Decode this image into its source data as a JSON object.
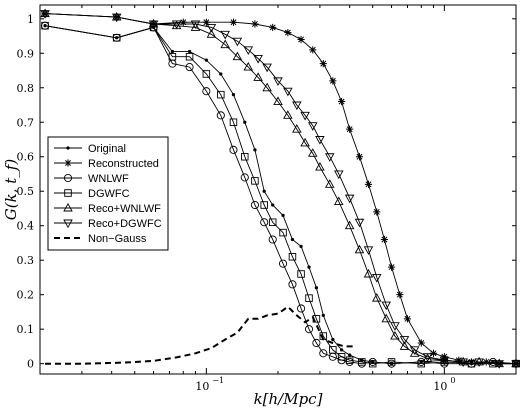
{
  "chart_data": {
    "type": "line",
    "xscale": "log",
    "xlim": [
      0.02,
      2.0
    ],
    "ylim": [
      -0.03,
      1.04
    ],
    "xlabel": "k[h/Mpc]",
    "ylabel": "G(k, t_f)",
    "xticks": [
      {
        "value": 0.1,
        "label": "10",
        "sup": "−1"
      },
      {
        "value": 1.0,
        "label": "10",
        "sup": "0"
      }
    ],
    "yticks": [
      0,
      0.1,
      0.2,
      0.3,
      0.4,
      0.5,
      0.6,
      0.7,
      0.8,
      0.9,
      1
    ],
    "ytick_labels": [
      "0",
      "0.1",
      "0.2",
      "0.3",
      "0.4",
      "0.5",
      "0.6",
      "0.7",
      "0.8",
      "0.9",
      "1"
    ],
    "legend_position": "center-left",
    "series": [
      {
        "name": "Original",
        "marker": "dot",
        "dashed": false,
        "x": [
          0.021,
          0.042,
          0.06,
          0.072,
          0.085,
          0.1,
          0.115,
          0.13,
          0.145,
          0.16,
          0.175,
          0.19,
          0.21,
          0.23,
          0.25,
          0.27,
          0.29,
          0.31,
          0.34,
          0.37,
          0.4,
          0.45,
          0.5,
          0.6,
          0.8,
          1.0,
          1.3,
          1.6,
          2.0
        ],
        "y": [
          0.98,
          0.945,
          0.975,
          0.905,
          0.905,
          0.88,
          0.84,
          0.78,
          0.7,
          0.62,
          0.5,
          0.46,
          0.43,
          0.36,
          0.34,
          0.28,
          0.22,
          0.14,
          0.07,
          0.04,
          0.025,
          0.01,
          0.005,
          0.0,
          0.005,
          0.01,
          0.0,
          0.005,
          0.0
        ]
      },
      {
        "name": "Reconstructed",
        "marker": "star",
        "dashed": false,
        "x": [
          0.021,
          0.042,
          0.06,
          0.08,
          0.1,
          0.13,
          0.16,
          0.19,
          0.22,
          0.25,
          0.28,
          0.31,
          0.34,
          0.37,
          0.4,
          0.44,
          0.48,
          0.52,
          0.56,
          0.6,
          0.65,
          0.7,
          0.8,
          0.9,
          1.0,
          1.15,
          1.3,
          1.5,
          1.7,
          2.0
        ],
        "y": [
          1.015,
          1.005,
          0.985,
          0.99,
          0.99,
          0.99,
          0.985,
          0.975,
          0.96,
          0.94,
          0.91,
          0.87,
          0.82,
          0.76,
          0.68,
          0.6,
          0.52,
          0.44,
          0.36,
          0.28,
          0.2,
          0.13,
          0.06,
          0.03,
          0.02,
          0.01,
          0.005,
          0.005,
          0.0,
          0.0
        ]
      },
      {
        "name": "WNLWF",
        "marker": "circle",
        "dashed": false,
        "x": [
          0.021,
          0.042,
          0.06,
          0.072,
          0.085,
          0.1,
          0.115,
          0.13,
          0.145,
          0.16,
          0.175,
          0.19,
          0.21,
          0.23,
          0.25,
          0.27,
          0.29,
          0.31,
          0.34,
          0.37,
          0.4,
          0.45,
          0.5,
          0.6,
          0.8,
          1.0,
          1.3,
          1.6,
          2.0
        ],
        "y": [
          0.98,
          0.945,
          0.975,
          0.87,
          0.86,
          0.79,
          0.72,
          0.62,
          0.54,
          0.46,
          0.41,
          0.36,
          0.29,
          0.23,
          0.16,
          0.1,
          0.06,
          0.03,
          0.02,
          0.01,
          0.005,
          0.0,
          0.005,
          0.0,
          0.005,
          0.0,
          0.0,
          0.005,
          0.0
        ]
      },
      {
        "name": "DGWFC",
        "marker": "square",
        "dashed": false,
        "x": [
          0.021,
          0.042,
          0.06,
          0.072,
          0.085,
          0.1,
          0.115,
          0.13,
          0.145,
          0.16,
          0.175,
          0.19,
          0.21,
          0.23,
          0.25,
          0.27,
          0.29,
          0.31,
          0.34,
          0.37,
          0.4,
          0.45,
          0.5,
          0.6,
          0.8,
          1.0,
          1.3,
          1.6,
          2.0
        ],
        "y": [
          0.98,
          0.945,
          0.975,
          0.89,
          0.89,
          0.84,
          0.78,
          0.7,
          0.6,
          0.53,
          0.46,
          0.41,
          0.38,
          0.31,
          0.26,
          0.19,
          0.13,
          0.08,
          0.04,
          0.02,
          0.01,
          0.005,
          0.0,
          0.005,
          0.0,
          0.005,
          0.0,
          0.0,
          0.0
        ]
      },
      {
        "name": "Reco+WNLWF",
        "marker": "triangle-up",
        "dashed": false,
        "x": [
          0.021,
          0.042,
          0.06,
          0.075,
          0.09,
          0.105,
          0.12,
          0.135,
          0.15,
          0.165,
          0.18,
          0.2,
          0.22,
          0.24,
          0.26,
          0.28,
          0.3,
          0.33,
          0.36,
          0.4,
          0.44,
          0.48,
          0.52,
          0.57,
          0.62,
          0.68,
          0.75,
          0.85,
          1.0,
          1.2,
          1.4,
          1.7,
          2.0
        ],
        "y": [
          1.015,
          1.005,
          0.985,
          0.98,
          0.975,
          0.955,
          0.925,
          0.89,
          0.86,
          0.83,
          0.8,
          0.76,
          0.72,
          0.68,
          0.64,
          0.61,
          0.57,
          0.52,
          0.47,
          0.4,
          0.33,
          0.26,
          0.19,
          0.13,
          0.08,
          0.05,
          0.03,
          0.015,
          0.01,
          0.005,
          0.005,
          0.0,
          0.0
        ]
      },
      {
        "name": "Reco+DGWFC",
        "marker": "triangle-down",
        "dashed": false,
        "x": [
          0.021,
          0.042,
          0.06,
          0.075,
          0.09,
          0.105,
          0.12,
          0.135,
          0.15,
          0.165,
          0.18,
          0.2,
          0.22,
          0.24,
          0.26,
          0.28,
          0.3,
          0.33,
          0.36,
          0.4,
          0.44,
          0.48,
          0.52,
          0.57,
          0.62,
          0.68,
          0.75,
          0.85,
          1.0,
          1.2,
          1.4,
          1.7,
          2.0
        ],
        "y": [
          1.015,
          1.005,
          0.985,
          0.985,
          0.985,
          0.975,
          0.955,
          0.935,
          0.91,
          0.885,
          0.86,
          0.82,
          0.79,
          0.75,
          0.72,
          0.69,
          0.65,
          0.6,
          0.55,
          0.48,
          0.41,
          0.33,
          0.25,
          0.17,
          0.11,
          0.07,
          0.04,
          0.02,
          0.01,
          0.005,
          0.005,
          0.0,
          0.0
        ]
      },
      {
        "name": "Non−Gauss",
        "marker": "none",
        "dashed": true,
        "x": [
          0.021,
          0.03,
          0.045,
          0.06,
          0.075,
          0.09,
          0.105,
          0.12,
          0.135,
          0.15,
          0.165,
          0.18,
          0.2,
          0.22,
          0.24,
          0.26,
          0.28,
          0.31,
          0.34,
          0.38,
          0.42
        ],
        "y": [
          0.0,
          0.0,
          0.003,
          0.008,
          0.018,
          0.03,
          0.045,
          0.07,
          0.09,
          0.13,
          0.13,
          0.14,
          0.145,
          0.165,
          0.14,
          0.12,
          0.135,
          0.07,
          0.06,
          0.05,
          0.05
        ]
      }
    ]
  }
}
